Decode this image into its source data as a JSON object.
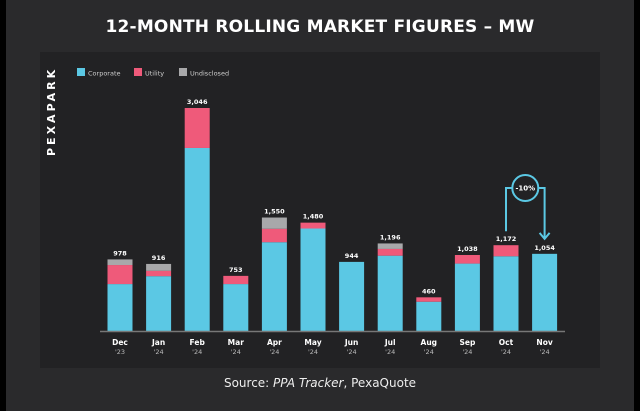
{
  "title": "12-MONTH ROLLING MARKET FIGURES – MW",
  "brand": "PEXAPARK",
  "source": {
    "prefix": "Source: ",
    "italic": "PPA Tracker",
    "suffix": ", PexaQuote"
  },
  "colors": {
    "Corporate": "#5bc8e4",
    "Utility": "#ef5a7a",
    "Undisclosed": "#a8a8aa"
  },
  "chart_data": {
    "type": "bar",
    "stacked": true,
    "title": "12-MONTH ROLLING MARKET FIGURES – MW",
    "xlabel": "",
    "ylabel": "MW",
    "ylim": [
      0,
      3200
    ],
    "grid": false,
    "legend_position": "top-left",
    "categories": [
      "Dec",
      "Jan",
      "Feb",
      "Mar",
      "Apr",
      "May",
      "Jun",
      "Jul",
      "Aug",
      "Sep",
      "Oct",
      "Nov"
    ],
    "years": [
      "'23",
      "'24",
      "'24",
      "'24",
      "'24",
      "'24",
      "'24",
      "'24",
      "'24",
      "'24",
      "'24",
      "'24"
    ],
    "totals": [
      "978",
      "916",
      "3,046",
      "753",
      "1,550",
      "1,480",
      "944",
      "1,196",
      "460",
      "1,038",
      "1,172",
      "1,054"
    ],
    "series": [
      {
        "name": "Corporate",
        "values": [
          641,
          749,
          2500,
          641,
          1213,
          1400,
          944,
          1029,
          400,
          921,
          1021,
          1054
        ]
      },
      {
        "name": "Utility",
        "values": [
          260,
          73,
          546,
          112,
          183,
          80,
          0,
          92,
          60,
          117,
          151,
          0
        ]
      },
      {
        "name": "Undisclosed",
        "values": [
          77,
          94,
          0,
          0,
          154,
          0,
          0,
          75,
          0,
          0,
          0,
          0
        ]
      }
    ],
    "annotation": {
      "text": "-10%",
      "from": "Oct",
      "to": "Nov"
    }
  }
}
